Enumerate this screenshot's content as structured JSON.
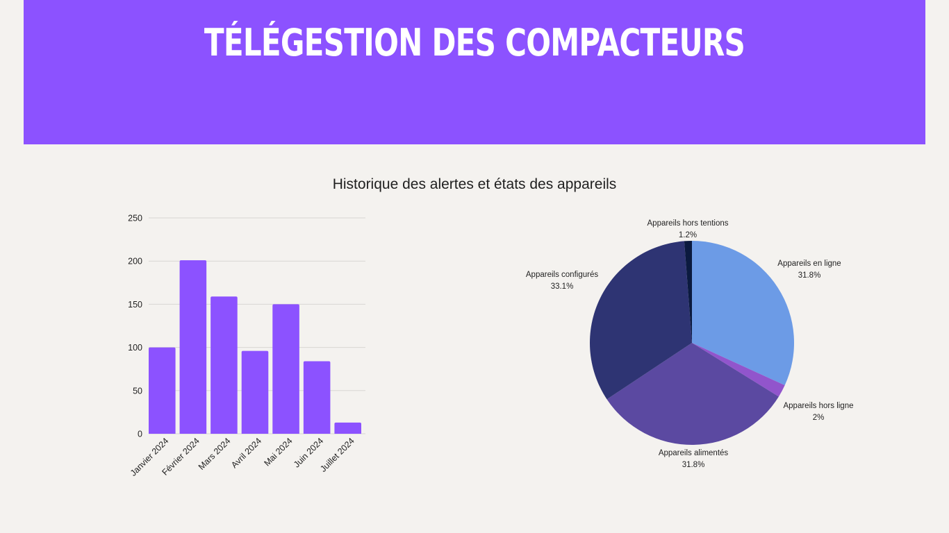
{
  "header": {
    "title": "Télégestion des compacteurs"
  },
  "colors": {
    "banner": "#8c52ff",
    "bar": "#8c52ff",
    "background": "#f4f2ef"
  },
  "chart_title": "Historique des alertes et états des appareils",
  "chart_data": [
    {
      "type": "bar",
      "categories": [
        "Janvier 2024",
        "Février 2024",
        "Mars 2024",
        "Avril 2024",
        "Mai 2024",
        "Juin 2024",
        "Juillet 2024"
      ],
      "values": [
        100,
        201,
        159,
        96,
        150,
        84,
        13
      ],
      "ylim": [
        0,
        250
      ],
      "yticks": [
        0,
        50,
        100,
        150,
        200,
        250
      ],
      "grid": true,
      "title": "",
      "xlabel": "",
      "ylabel": ""
    },
    {
      "type": "pie",
      "slices": [
        {
          "label": "Appareils en ligne",
          "value": 31.8,
          "text": "31.8%",
          "color": "#6c9be6"
        },
        {
          "label": "Appareils hors ligne",
          "value": 2,
          "text": "2%",
          "color": "#9155cc"
        },
        {
          "label": "Appareils alimentés",
          "value": 31.8,
          "text": "31.8%",
          "color": "#5b49a1"
        },
        {
          "label": "Appareils configurés",
          "value": 33.1,
          "text": "33.1%",
          "color": "#2e3473"
        },
        {
          "label": "Appareils hors tentions",
          "value": 1.2,
          "text": "1.2%",
          "color": "#0b1a3f"
        }
      ]
    }
  ]
}
